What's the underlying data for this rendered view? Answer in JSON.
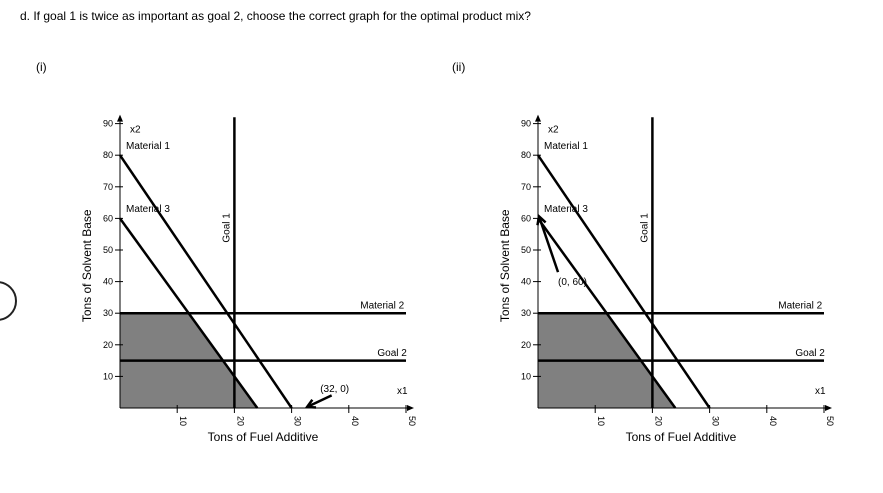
{
  "question": "d. If goal 1 is twice as important as goal 2, choose the correct graph for the optimal product mix?",
  "chart_data": [
    {
      "option": "(i)",
      "type": "line",
      "xlabel": "Tons of Fuel Additive",
      "ylabel": "Tons of Solvent Base",
      "x_axis_name": "x1",
      "y_axis_name": "x2",
      "xlim": [
        0,
        50
      ],
      "ylim": [
        0,
        90
      ],
      "x_ticks": [
        10,
        20,
        30,
        40,
        50
      ],
      "y_ticks": [
        10,
        20,
        30,
        40,
        50,
        60,
        70,
        80,
        90
      ],
      "lines": [
        {
          "name": "Material 1",
          "x": [
            0,
            30
          ],
          "y": [
            80,
            0
          ],
          "label_pos": [
            0,
            82
          ]
        },
        {
          "name": "Material 3",
          "x": [
            0,
            24
          ],
          "y": [
            60,
            0
          ],
          "label_pos": [
            0,
            62
          ]
        },
        {
          "name": "Material 2",
          "x": [
            0,
            50
          ],
          "y": [
            30,
            30
          ],
          "label_pos": [
            42,
            31.5
          ]
        },
        {
          "name": "Goal 2",
          "x": [
            0,
            50
          ],
          "y": [
            15,
            15
          ],
          "label_pos": [
            45,
            16.5
          ]
        },
        {
          "name": "Goal 1",
          "x": [
            20,
            20
          ],
          "y": [
            0,
            92
          ],
          "label_pos": [
            20,
            57
          ],
          "vertical_label": true
        }
      ],
      "shaded_region": {
        "x": [
          0,
          0,
          12,
          24
        ],
        "y": [
          0,
          30,
          30,
          0
        ]
      },
      "point": {
        "label": "(32, 0)",
        "x": 32,
        "y": 0,
        "label_pos": [
          35,
          5
        ],
        "arrow_from": [
          37,
          4
        ]
      }
    },
    {
      "option": "(ii)",
      "type": "line",
      "xlabel": "Tons of Fuel Additive",
      "ylabel": "Tons of Solvent Base",
      "x_axis_name": "x1",
      "y_axis_name": "x2",
      "xlim": [
        0,
        50
      ],
      "ylim": [
        0,
        90
      ],
      "x_ticks": [
        10,
        20,
        30,
        40,
        50
      ],
      "y_ticks": [
        10,
        20,
        30,
        40,
        50,
        60,
        70,
        80,
        90
      ],
      "lines": [
        {
          "name": "Material 1",
          "x": [
            0,
            30
          ],
          "y": [
            80,
            0
          ],
          "label_pos": [
            0,
            82
          ]
        },
        {
          "name": "Material 3",
          "x": [
            0,
            24
          ],
          "y": [
            60,
            0
          ],
          "label_pos": [
            0,
            62
          ]
        },
        {
          "name": "Material 2",
          "x": [
            0,
            50
          ],
          "y": [
            30,
            30
          ],
          "label_pos": [
            42,
            31.5
          ]
        },
        {
          "name": "Goal 2",
          "x": [
            0,
            50
          ],
          "y": [
            15,
            15
          ],
          "label_pos": [
            45,
            16.5
          ]
        },
        {
          "name": "Goal 1",
          "x": [
            20,
            20
          ],
          "y": [
            0,
            92
          ],
          "label_pos": [
            20,
            57
          ],
          "vertical_label": true
        }
      ],
      "shaded_region": {
        "x": [
          0,
          0,
          12,
          24
        ],
        "y": [
          0,
          30,
          30,
          0
        ]
      },
      "point": {
        "label": "(0, 60)",
        "x": 0,
        "y": 60,
        "label_pos": [
          3.5,
          39
        ],
        "arrow_from": [
          3.5,
          43
        ]
      }
    }
  ]
}
